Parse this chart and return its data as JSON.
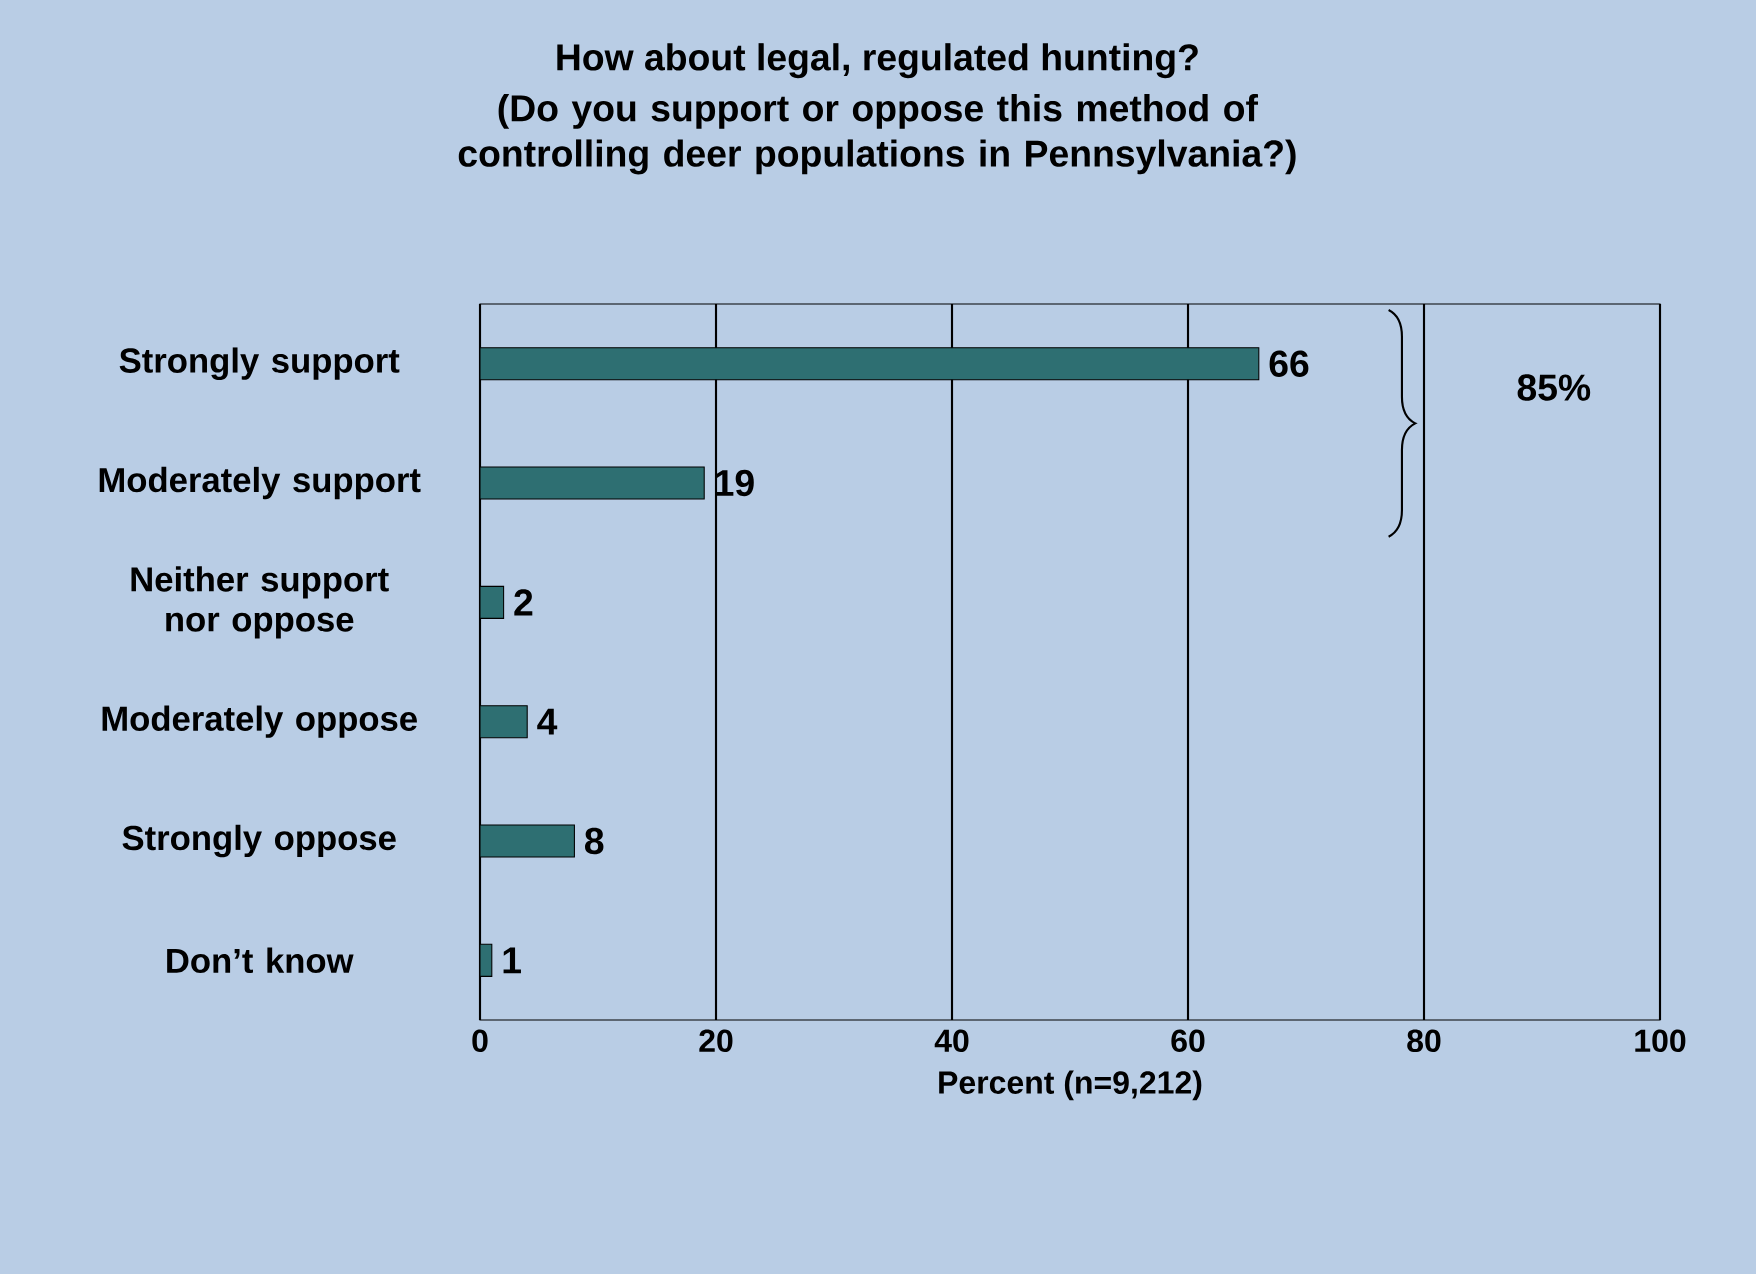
{
  "chart_data": {
    "type": "bar",
    "orientation": "horizontal",
    "title": "How about legal, regulated hunting?",
    "subtitle": "(Do you support or oppose this method of controlling deer populations in Pennsylvania?)",
    "xlabel": "Percent (n=9,212)",
    "categories": [
      "Strongly support",
      "Moderately support",
      "Neither support nor oppose",
      "Moderately oppose",
      "Strongly oppose",
      "Don’t know"
    ],
    "values": [
      66,
      19,
      2,
      4,
      8,
      1
    ],
    "color": "#2e6f72",
    "xlim": [
      0,
      100
    ],
    "xticks": [
      0,
      20,
      40,
      60,
      80,
      100
    ],
    "grid": "x",
    "data_labels": true,
    "annotations": [
      "85%"
    ]
  }
}
